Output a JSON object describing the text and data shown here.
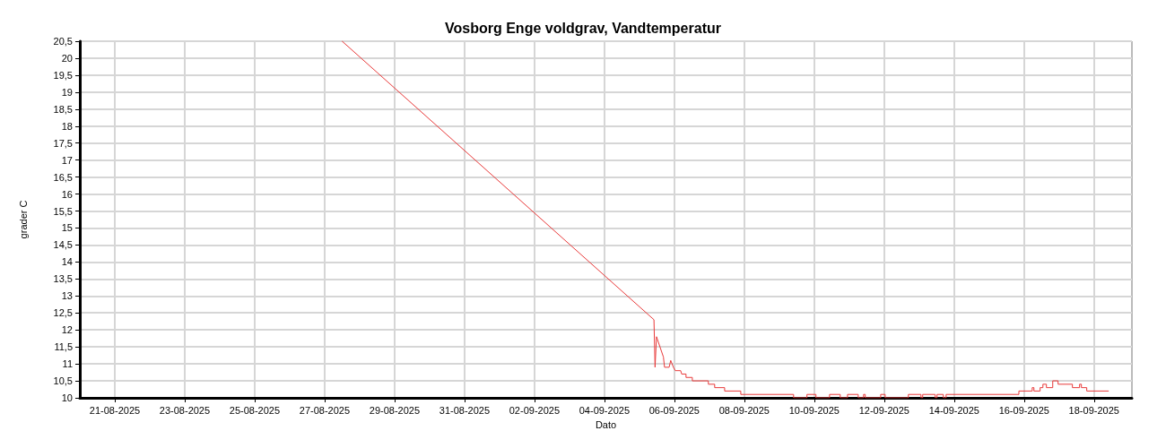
{
  "chart_data": {
    "type": "line",
    "title": "Vosborg Enge voldgrav, Vandtemperatur",
    "xlabel": "Dato",
    "ylabel": "grader C",
    "series": [
      {
        "color": "#e83a3a",
        "x": [
          "2025-08-27T12:00",
          "2025-09-05T10:00",
          "2025-09-05T10:45",
          "2025-09-05T11:45",
          "2025-09-05T16:30",
          "2025-09-05T17:15",
          "2025-09-05T20:25",
          "2025-09-05T21:30",
          "2025-09-05T23:20",
          "2025-09-06T00:40",
          "2025-09-06T04:20",
          "2025-09-06T05:00",
          "2025-09-06T08:00",
          "2025-09-06T08:00",
          "2025-09-06T12:20",
          "2025-09-06T12:20",
          "2025-09-06T23:20",
          "2025-09-06T23:20",
          "2025-09-07T03:40",
          "2025-09-07T03:40",
          "2025-09-07T10:30",
          "2025-09-07T10:30",
          "2025-09-07T21:35",
          "2025-09-07T21:35",
          "2025-09-09T09:50",
          "2025-09-09T09:50",
          "2025-09-09T19:00",
          "2025-09-09T19:00",
          "2025-09-10T01:10",
          "2025-09-10T01:10",
          "2025-09-10T10:30",
          "2025-09-10T10:30",
          "2025-09-10T17:50",
          "2025-09-10T17:50",
          "2025-09-10T22:50",
          "2025-09-10T22:50",
          "2025-09-11T06:10",
          "2025-09-11T06:10",
          "2025-09-11T09:50",
          "2025-09-11T09:50",
          "2025-09-11T11:00",
          "2025-09-11T11:00",
          "2025-09-11T21:35",
          "2025-09-11T21:35",
          "2025-09-12T00:40",
          "2025-09-12T00:40",
          "2025-09-12T16:35",
          "2025-09-12T16:35",
          "2025-09-13T01:15",
          "2025-09-13T01:15",
          "2025-09-13T02:25",
          "2025-09-13T02:25",
          "2025-09-13T11:00",
          "2025-09-13T11:00",
          "2025-09-13T12:15",
          "2025-09-13T12:15",
          "2025-09-13T16:35",
          "2025-09-13T16:35",
          "2025-09-13T18:30",
          "2025-09-13T18:30",
          "2025-09-15T20:25",
          "2025-09-15T20:25",
          "2025-09-16T05:35",
          "2025-09-16T05:35",
          "2025-09-16T06:45",
          "2025-09-16T06:45",
          "2025-09-16T11:00",
          "2025-09-16T11:00",
          "2025-09-16T12:55",
          "2025-09-16T12:55",
          "2025-09-16T15:20",
          "2025-09-16T15:20",
          "2025-09-16T19:40",
          "2025-09-16T19:40",
          "2025-09-16T23:20",
          "2025-09-16T23:20",
          "2025-09-17T09:10",
          "2025-09-17T09:10",
          "2025-09-17T14:05",
          "2025-09-17T14:05",
          "2025-09-17T15:20",
          "2025-09-17T15:20",
          "2025-09-17T19:00",
          "2025-09-17T19:00",
          "2025-09-18T09:50"
        ],
        "values": [
          20.5,
          12.3,
          10.9,
          11.8,
          11.2,
          10.9,
          10.9,
          11.1,
          10.9,
          10.8,
          10.8,
          10.7,
          10.7,
          10.6,
          10.6,
          10.5,
          10.5,
          10.4,
          10.4,
          10.3,
          10.3,
          10.2,
          10.2,
          10.1,
          10.1,
          10.0,
          10.0,
          10.1,
          10.1,
          10.0,
          10.0,
          10.1,
          10.1,
          10.0,
          10.0,
          10.1,
          10.1,
          10.0,
          10.0,
          10.1,
          10.1,
          10.0,
          10.0,
          10.1,
          10.1,
          10.0,
          10.0,
          10.1,
          10.1,
          10.0,
          10.0,
          10.1,
          10.1,
          10.0,
          10.0,
          10.1,
          10.1,
          10.0,
          10.0,
          10.1,
          10.1,
          10.2,
          10.2,
          10.3,
          10.3,
          10.2,
          10.2,
          10.3,
          10.3,
          10.4,
          10.4,
          10.3,
          10.3,
          10.5,
          10.5,
          10.4,
          10.4,
          10.3,
          10.3,
          10.4,
          10.4,
          10.3,
          10.3,
          10.2,
          10.2
        ]
      }
    ],
    "xlim": [
      "2025-08-20",
      "2025-09-19T02:00"
    ],
    "xticks": [
      {
        "value": "2025-08-21",
        "label": "21-08-2025"
      },
      {
        "value": "2025-08-23",
        "label": "23-08-2025"
      },
      {
        "value": "2025-08-25",
        "label": "25-08-2025"
      },
      {
        "value": "2025-08-27",
        "label": "27-08-2025"
      },
      {
        "value": "2025-08-29",
        "label": "29-08-2025"
      },
      {
        "value": "2025-08-31",
        "label": "31-08-2025"
      },
      {
        "value": "2025-09-02",
        "label": "02-09-2025"
      },
      {
        "value": "2025-09-04",
        "label": "04-09-2025"
      },
      {
        "value": "2025-09-06",
        "label": "06-09-2025"
      },
      {
        "value": "2025-09-08",
        "label": "08-09-2025"
      },
      {
        "value": "2025-09-10",
        "label": "10-09-2025"
      },
      {
        "value": "2025-09-12",
        "label": "12-09-2025"
      },
      {
        "value": "2025-09-14",
        "label": "14-09-2025"
      },
      {
        "value": "2025-09-16",
        "label": "16-09-2025"
      },
      {
        "value": "2025-09-18",
        "label": "18-09-2025"
      }
    ],
    "ylim": [
      10,
      20.5
    ],
    "yticks": [
      10,
      {
        "value": 10.5,
        "label": "10,5"
      },
      11,
      {
        "value": 11.5,
        "label": "11,5"
      },
      12,
      {
        "value": 12.5,
        "label": "12,5"
      },
      13,
      {
        "value": 13.5,
        "label": "13,5"
      },
      14,
      {
        "value": 14.5,
        "label": "14,5"
      },
      15,
      {
        "value": 15.5,
        "label": "15,5"
      },
      16,
      {
        "value": 16.5,
        "label": "16,5"
      },
      17,
      {
        "value": 17.5,
        "label": "17,5"
      },
      18,
      {
        "value": 18.5,
        "label": "18,5"
      },
      19,
      {
        "value": 19.5,
        "label": "19,5"
      },
      20,
      {
        "value": 20.5,
        "label": "20,5"
      }
    ],
    "grid": true,
    "marker": "none",
    "line_style": "solid"
  }
}
